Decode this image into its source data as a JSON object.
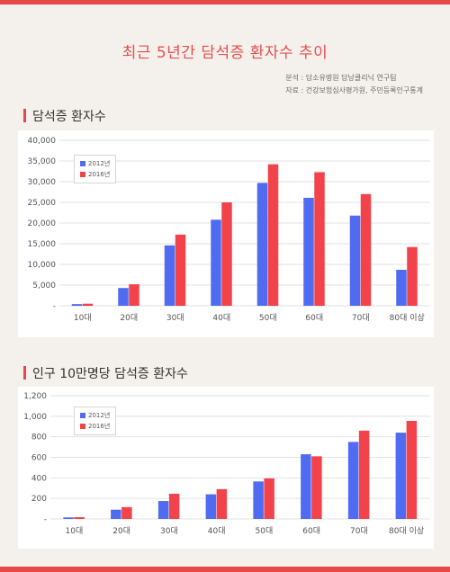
{
  "header": {
    "title": "최근 5년간 담석증 환자수 추이",
    "source_line1": "분석 : 담소유병원 담낭클리닉 연구팀",
    "source_line2": "자료 : 건강보험심사평가원, 주민등록인구통계"
  },
  "colors": {
    "series_2012": "#4f6bf2",
    "series_2016": "#f2434a",
    "accent": "#e84848"
  },
  "chart_data": [
    {
      "type": "bar",
      "title": "담석증 환자수",
      "categories": [
        "10대",
        "20대",
        "30대",
        "40대",
        "50대",
        "60대",
        "70대",
        "80대 이상"
      ],
      "series": [
        {
          "name": "2012년",
          "values": [
            400,
            4300,
            14600,
            20800,
            29700,
            26100,
            21800,
            8700
          ]
        },
        {
          "name": "2016년",
          "values": [
            500,
            5200,
            17200,
            25000,
            34200,
            32300,
            27000,
            14200
          ]
        }
      ],
      "ylim": [
        0,
        40000
      ],
      "yticks": [
        "-",
        "5,000",
        "10,000",
        "15,000",
        "20,000",
        "25,000",
        "30,000",
        "35,000",
        "40,000"
      ],
      "grid": true,
      "legend_position": "top-left"
    },
    {
      "type": "bar",
      "title": "인구 10만명당 담석증 환자수",
      "categories": [
        "10대",
        "20대",
        "30대",
        "40대",
        "50대",
        "60대",
        "70대",
        "80대 이상"
      ],
      "series": [
        {
          "name": "2012년",
          "values": [
            15,
            90,
            175,
            240,
            365,
            630,
            750,
            840
          ]
        },
        {
          "name": "2016년",
          "values": [
            17,
            115,
            245,
            290,
            395,
            610,
            860,
            955
          ]
        }
      ],
      "ylim": [
        0,
        1200
      ],
      "yticks": [
        "-",
        "200",
        "400",
        "600",
        "800",
        "1,000",
        "1,200"
      ],
      "grid": true,
      "legend_position": "top-left"
    }
  ]
}
